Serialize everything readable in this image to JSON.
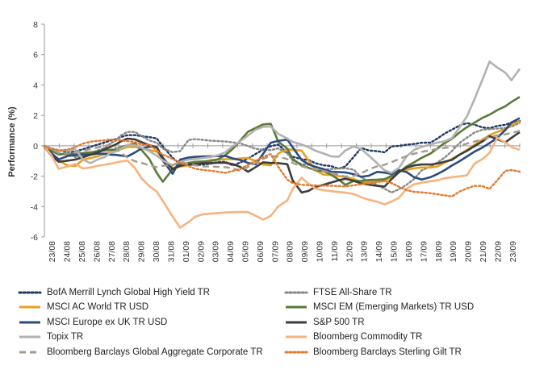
{
  "chart_data": {
    "type": "line",
    "title": "",
    "xlabel": "",
    "ylabel": "Performance (%)",
    "ylim": [
      -6,
      8
    ],
    "yticks": [
      -6,
      -4,
      -2,
      0,
      2,
      4,
      6,
      8
    ],
    "grid": false,
    "legend_position": "bottom",
    "categories": [
      "23/08",
      "24/08",
      "25/08",
      "26/08",
      "27/08",
      "28/08",
      "29/08",
      "30/08",
      "31/08",
      "01/09",
      "02/09",
      "03/09",
      "04/09",
      "05/09",
      "06/09",
      "07/09",
      "08/09",
      "09/09",
      "10/09",
      "11/09",
      "12/09",
      "13/09",
      "14/09",
      "15/09",
      "16/09",
      "17/09",
      "18/09",
      "19/09",
      "20/09",
      "21/09",
      "22/09",
      "23/09"
    ],
    "x": [
      0,
      0.9,
      1.9,
      3.1,
      4.1,
      5.1,
      6.1,
      7.1,
      8,
      8.7,
      9.5,
      10.1,
      11,
      12,
      12.9,
      13.9,
      14.9,
      15.7,
      17,
      18,
      19.1,
      20,
      21,
      22,
      23,
      24,
      25,
      26,
      27,
      28,
      29,
      30,
      31,
      32.2,
      32.9,
      34.1,
      35,
      35.9,
      37,
      38,
      39,
      39.9,
      41,
      42,
      43,
      44.1,
      45.1,
      46,
      47,
      48,
      49,
      50,
      51.2,
      52.1,
      53,
      54,
      55,
      56,
      57,
      58,
      59,
      60,
      61.1,
      61.9,
      63
    ],
    "series": [
      {
        "name": "BofA Merrill Lynch Global High Yield TR",
        "color": "#1f3864",
        "style": "dotted",
        "values": [
          -0.02,
          -0.17,
          -0.3,
          -0.44,
          -0.38,
          -0.23,
          -0.07,
          0.08,
          0.22,
          0.34,
          0.44,
          0.57,
          0.7,
          0.7,
          0.63,
          0.57,
          0.48,
          -0.05,
          -0.79,
          -1.2,
          -1.24,
          -1.28,
          -1.24,
          -1.18,
          -1.07,
          -1.06,
          -1.3,
          -1.09,
          -0.84,
          -0.54,
          -0.25,
          -0.03,
          0.08,
          -0.48,
          -0.72,
          -0.89,
          -0.93,
          -1.14,
          -1.28,
          -1.34,
          -1.51,
          -1.36,
          -0.73,
          -0.14,
          -0.31,
          -0.36,
          -0.43,
          -0.04,
          -0.01,
          0.07,
          0.12,
          0.2,
          0.21,
          0.48,
          0.79,
          1.06,
          1.33,
          1.49,
          1.39,
          1.21,
          1.16,
          1.3,
          1.38,
          1.53,
          1.63
        ]
      },
      {
        "name": "FTSE All-Share TR",
        "color": "#888888",
        "style": "dotted",
        "values": [
          -0.1,
          -0.33,
          -0.52,
          -0.52,
          -0.75,
          -0.67,
          -0.49,
          -0.3,
          -0.15,
          0.14,
          0.35,
          0.67,
          0.91,
          0.91,
          0.63,
          0.35,
          0.2,
          -0.19,
          -0.42,
          -0.35,
          0.38,
          0.43,
          0.39,
          0.33,
          0.31,
          0.28,
          0.22,
          0.15,
          -0.02,
          -0.2,
          -0.26,
          -0.29,
          -0.17,
          -0.5,
          -0.97,
          -1.21,
          -1.25,
          -1.41,
          -1.57,
          -1.53,
          -1.5,
          -1.48,
          -1.57,
          -2.09,
          -2.34,
          -2.59,
          -2.83,
          -3.08,
          -2.86,
          -2.57,
          -2.18,
          -1.62,
          -1.36,
          -1.09,
          -0.8,
          -0.36,
          0.18,
          0.54,
          0.87,
          1.05,
          1.09,
          1.13,
          1.16,
          1.26,
          1.51
        ]
      },
      {
        "name": "MSCI AC World TR USD",
        "color": "#e8a020",
        "style": "solid",
        "values": [
          -0.08,
          -0.54,
          -0.99,
          -1.3,
          -1.34,
          -0.92,
          -0.81,
          -0.69,
          -0.56,
          -0.41,
          -0.34,
          -0.23,
          -0.08,
          -0.07,
          -0.17,
          -0.28,
          -0.39,
          -0.83,
          -1.46,
          -1.37,
          -1.28,
          -1.18,
          -1.06,
          -0.94,
          -0.91,
          -0.88,
          -0.88,
          -0.83,
          -0.81,
          -1.02,
          -1.23,
          -1.28,
          -0.51,
          -0.21,
          -0.28,
          -0.32,
          -0.97,
          -1.6,
          -1.9,
          -1.93,
          -1.99,
          -2.06,
          -2.19,
          -2.39,
          -2.37,
          -2.34,
          -2.3,
          -2.06,
          -1.69,
          -1.58,
          -1.48,
          -1.43,
          -1.43,
          -1.36,
          -1.12,
          -0.86,
          -0.59,
          -0.28,
          0.06,
          0.39,
          0.7,
          0.91,
          1.09,
          1.36,
          1.64
        ]
      },
      {
        "name": "MSCI EM (Emerging Markets) TR USD",
        "color": "#5b7a3a",
        "style": "solid",
        "values": [
          -0.05,
          -0.33,
          -0.57,
          -0.54,
          -0.56,
          -0.48,
          -0.43,
          -0.36,
          -0.31,
          -0.27,
          -0.24,
          -0.1,
          0.03,
          0.14,
          -0.29,
          -0.87,
          -1.79,
          -2.37,
          -1.54,
          -1.25,
          -1.12,
          -1.06,
          -1.03,
          -1.01,
          -0.9,
          -0.61,
          -0.19,
          0.37,
          0.93,
          1.17,
          1.41,
          1.44,
          0.27,
          -0.19,
          -0.86,
          -1.3,
          -1.45,
          -1.61,
          -1.68,
          -1.9,
          -2.23,
          -2.57,
          -2.32,
          -2.31,
          -2.25,
          -2.23,
          -2.2,
          -1.98,
          -1.74,
          -1.36,
          -1.09,
          -0.79,
          -0.5,
          -0.17,
          0.17,
          0.46,
          0.87,
          1.23,
          1.52,
          1.82,
          2.05,
          2.34,
          2.6,
          2.88,
          3.21
        ]
      },
      {
        "name": "MSCI Europe ex UK TR USD",
        "color": "#2b4c7e",
        "style": "solid",
        "values": [
          -0.02,
          -0.47,
          -0.9,
          -0.67,
          -0.62,
          -0.58,
          -0.58,
          -0.52,
          -0.52,
          -0.58,
          -0.6,
          -0.64,
          -0.71,
          -0.44,
          -0.17,
          -0.06,
          -0.08,
          -0.98,
          -1.84,
          -0.91,
          -0.77,
          -0.73,
          -0.71,
          -0.69,
          -0.68,
          -0.67,
          -0.84,
          -0.94,
          -1.13,
          -1.22,
          -0.52,
          0.2,
          0.32,
          0.41,
          -0.09,
          -0.94,
          -1.21,
          -1.38,
          -1.54,
          -1.71,
          -1.73,
          -1.75,
          -1.87,
          -2.04,
          -1.97,
          -1.72,
          -1.77,
          -1.86,
          -1.61,
          -1.73,
          -2.07,
          -2.22,
          -2.06,
          -1.86,
          -1.62,
          -1.3,
          -1.02,
          -0.7,
          -0.39,
          -0.13,
          0.18,
          0.51,
          1.04,
          1.53,
          1.82
        ]
      },
      {
        "name": "S&P 500 TR",
        "color": "#3d3d3d",
        "style": "solid",
        "values": [
          -0.06,
          -0.63,
          -1.05,
          -0.98,
          -0.91,
          -0.76,
          -0.59,
          -0.43,
          -0.23,
          -0.08,
          0.1,
          0.28,
          0.47,
          0.42,
          0.23,
          0.04,
          -0.09,
          -0.79,
          -1.55,
          -1.32,
          -1.22,
          -1.2,
          -1.15,
          -1.14,
          -1.12,
          -1.12,
          -1.21,
          -1.4,
          -1.71,
          -1.4,
          -1.09,
          -1.13,
          -1.14,
          -1.21,
          -2.28,
          -3.08,
          -2.97,
          -2.71,
          -2.57,
          -2.42,
          -2.27,
          -2.17,
          -2.31,
          -2.48,
          -2.56,
          -2.64,
          -2.68,
          -2.2,
          -1.73,
          -1.44,
          -1.29,
          -1.23,
          -1.23,
          -1.17,
          -1.05,
          -0.93,
          -0.59,
          -0.33,
          -0.02,
          0.27,
          0.63,
          0.44,
          0.23,
          0.52,
          0.9
        ]
      },
      {
        "name": "Topix TR",
        "color": "#b2b2b2",
        "style": "solid",
        "values": [
          0.02,
          -0.18,
          -0.36,
          -0.28,
          -0.23,
          -0.9,
          -1.15,
          -0.89,
          -0.75,
          -0.47,
          -0.38,
          -0.19,
          0.04,
          0.03,
          -0.14,
          -0.36,
          -0.65,
          -0.97,
          -1.29,
          -1.06,
          -0.91,
          -0.87,
          -0.81,
          -0.74,
          -0.63,
          -0.42,
          -0.02,
          0.31,
          0.68,
          1.06,
          1.25,
          1.27,
          0.78,
          0.48,
          0.26,
          0.08,
          -0.1,
          -0.32,
          -0.51,
          -0.69,
          -0.73,
          -0.31,
          -0.04,
          -0.22,
          -0.65,
          -1.14,
          -1.62,
          -1.79,
          -1.45,
          -0.69,
          -0.28,
          -0.07,
          0.08,
          0.21,
          0.29,
          0.5,
          1.2,
          1.94,
          3.07,
          4.29,
          5.54,
          5.15,
          4.81,
          4.31,
          5.06
        ]
      },
      {
        "name": "Bloomberg Commodity TR",
        "color": "#f6b37e",
        "style": "solid",
        "values": [
          -0.03,
          -0.6,
          -1.52,
          -1.36,
          -1.19,
          -1.49,
          -1.43,
          -1.31,
          -1.25,
          -1.18,
          -1.1,
          -1.04,
          -0.98,
          -1.46,
          -2.16,
          -2.65,
          -3.02,
          -3.64,
          -4.66,
          -5.39,
          -5.02,
          -4.67,
          -4.51,
          -4.47,
          -4.43,
          -4.38,
          -4.37,
          -4.35,
          -4.37,
          -4.61,
          -4.86,
          -4.61,
          -3.99,
          -3.6,
          -2.85,
          -2.11,
          -2.5,
          -2.81,
          -2.93,
          -2.99,
          -3.04,
          -3.09,
          -3.17,
          -3.39,
          -3.55,
          -3.68,
          -3.86,
          -3.67,
          -3.42,
          -2.84,
          -2.53,
          -2.43,
          -2.33,
          -2.27,
          -2.14,
          -2.07,
          -2.01,
          -1.95,
          -1.18,
          -0.89,
          -0.47,
          0.53,
          0.22,
          -0.08,
          -0.27
        ]
      },
      {
        "name": "Bloomberg Barclays Global Aggregate Corporate TR",
        "color": "#a89a8a",
        "style": "dashed",
        "values": [
          -0.02,
          -0.23,
          -0.48,
          -0.5,
          -0.41,
          -0.34,
          -0.22,
          -0.11,
          -0.02,
          0.07,
          -0.13,
          -0.44,
          -0.78,
          -1.02,
          -1.13,
          -1.28,
          -1.41,
          -1.32,
          -1.27,
          -1.08,
          -1.19,
          -1.28,
          -1.36,
          -1.37,
          -1.39,
          -1.41,
          -1.49,
          -1.65,
          -1.39,
          -1.13,
          -0.86,
          -0.67,
          -0.71,
          -0.88,
          -1.13,
          -1.35,
          -1.47,
          -1.57,
          -1.66,
          -1.77,
          -1.91,
          -2.03,
          -1.98,
          -1.8,
          -1.56,
          -1.35,
          -1.25,
          -1.08,
          -0.87,
          -0.68,
          -0.52,
          -0.4,
          -0.29,
          -0.21,
          -0.14,
          -0.09,
          0.02,
          0.14,
          0.28,
          0.42,
          0.56,
          0.68,
          0.75,
          0.85,
          0.98
        ]
      },
      {
        "name": "Bloomberg Barclays Sterling Gilt TR",
        "color": "#e07a30",
        "style": "dotted",
        "values": [
          -0.05,
          -0.19,
          -0.3,
          -0.26,
          -0.08,
          0.14,
          0.27,
          0.32,
          0.36,
          0.41,
          0.38,
          0.36,
          0.3,
          0.24,
          0.07,
          0.08,
          -0.31,
          -0.58,
          -0.86,
          -1.13,
          -1.33,
          -1.52,
          -1.59,
          -1.64,
          -1.71,
          -1.78,
          -1.65,
          -1.52,
          -1.26,
          -0.98,
          -0.73,
          -0.55,
          -1.39,
          -2.23,
          -2.45,
          -2.57,
          -2.6,
          -2.61,
          -2.62,
          -2.63,
          -2.65,
          -2.68,
          -2.6,
          -2.53,
          -2.47,
          -2.39,
          -2.33,
          -2.45,
          -2.7,
          -2.92,
          -3.03,
          -3.07,
          -3.12,
          -3.19,
          -3.26,
          -3.34,
          -3.02,
          -2.8,
          -2.64,
          -2.65,
          -2.84,
          -2.28,
          -1.65,
          -1.6,
          -1.7
        ]
      }
    ]
  }
}
